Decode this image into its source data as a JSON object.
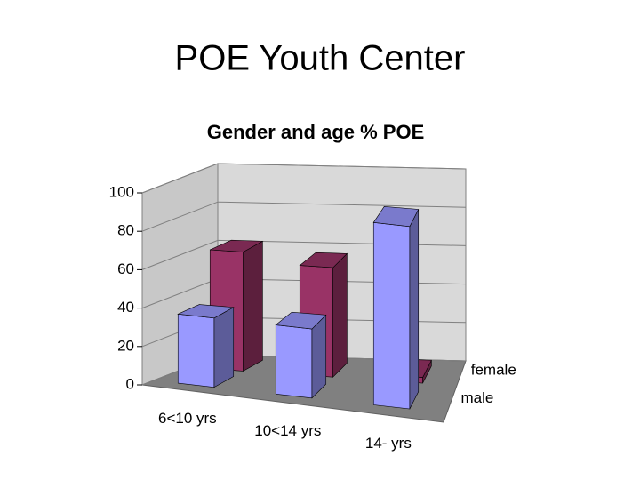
{
  "page_title": "POE Youth Center",
  "chart_data": {
    "type": "bar3d",
    "title": "Gender and age % POE",
    "categories": [
      "6<10 yrs",
      "10<14 yrs",
      "14- yrs"
    ],
    "series": [
      {
        "name": "male",
        "color": "#9999ff",
        "values": [
          36,
          36,
          95
        ]
      },
      {
        "name": "female",
        "color": "#993366",
        "values": [
          62,
          57,
          3
        ]
      }
    ],
    "ylim": [
      0,
      100
    ],
    "yticks": [
      0,
      20,
      40,
      60,
      80,
      100
    ],
    "grid": true
  }
}
